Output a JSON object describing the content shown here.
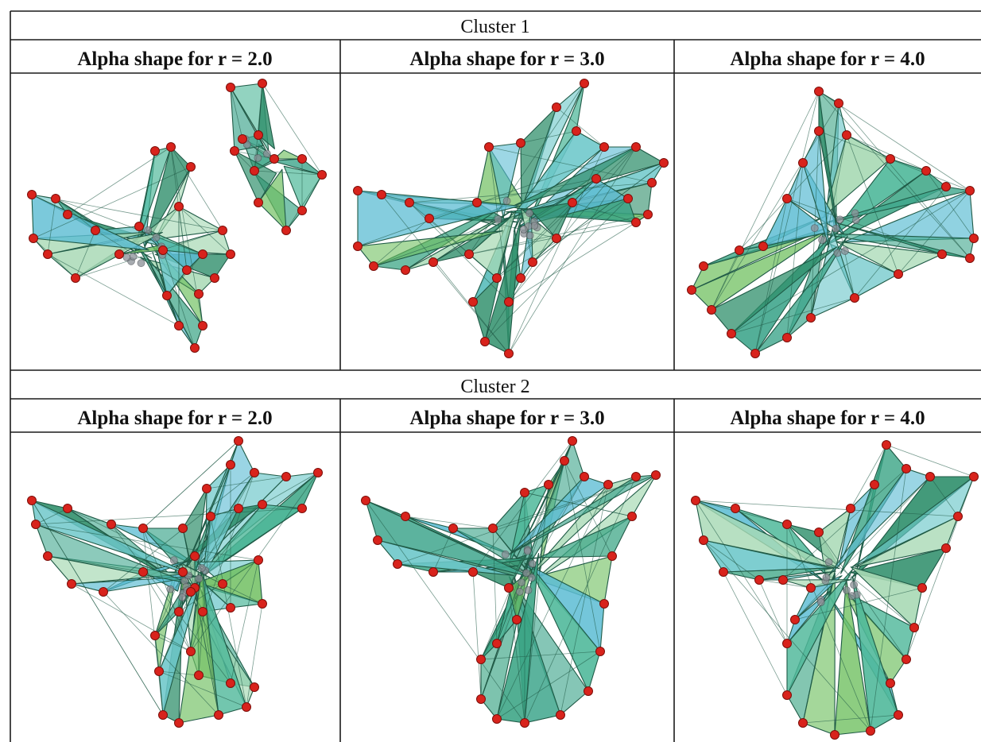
{
  "figure": {
    "clusters": [
      {
        "title": "Cluster 1",
        "panels": [
          {
            "label": "Alpha shape for r = 2.0",
            "icon": "alpha-shape-render"
          },
          {
            "label": "Alpha shape for r = 3.0",
            "icon": "alpha-shape-render"
          },
          {
            "label": "Alpha shape for r = 4.0",
            "icon": "alpha-shape-render"
          }
        ]
      },
      {
        "title": "Cluster 2",
        "panels": [
          {
            "label": "Alpha shape for r = 2.0",
            "icon": "alpha-shape-render"
          },
          {
            "label": "Alpha shape for r = 3.0",
            "icon": "alpha-shape-render"
          },
          {
            "label": "Alpha shape for r = 4.0",
            "icon": "alpha-shape-render"
          }
        ]
      }
    ],
    "colors": {
      "face_fills": [
        "#4fb89a",
        "#3aa484",
        "#6cc7c9",
        "#5cbcd3",
        "#2f8f6b",
        "#6fbf5f",
        "#a7d9b4",
        "#40a68d"
      ],
      "vertex": "#d8231c",
      "inner_vertex": "#8a8f96",
      "edge": "#1f5a46"
    }
  }
}
